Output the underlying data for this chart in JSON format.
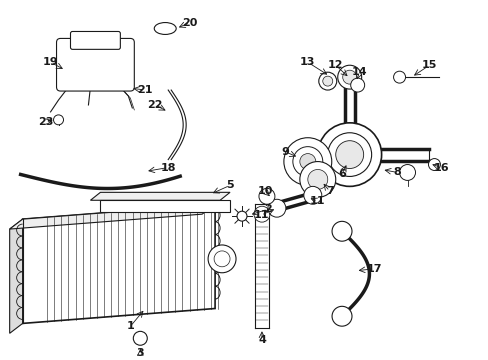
{
  "bg_color": "#ffffff",
  "fig_width": 4.89,
  "fig_height": 3.6,
  "dpi": 100,
  "line_color": "#1a1a1a",
  "label_fontsize": 7.5
}
